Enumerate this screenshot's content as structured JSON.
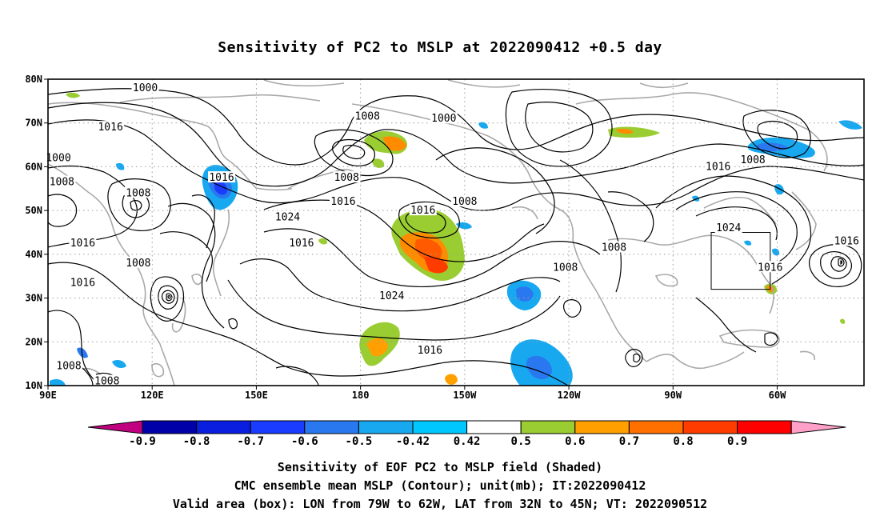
{
  "title": "Sensitivity of PC2 to MSLP at 2022090412 +0.5 day",
  "map": {
    "lat_labels": [
      "80N",
      "70N",
      "60N",
      "50N",
      "40N",
      "30N",
      "20N",
      "10N"
    ],
    "lon_labels": [
      "90E",
      "120E",
      "150E",
      "180",
      "150W",
      "120W",
      "90W",
      "60W"
    ],
    "lat_range": [
      10,
      80
    ],
    "lon_range_deg_east": [
      90,
      325
    ],
    "grid": "dotted",
    "valid_box": {
      "lon_west": -79,
      "lon_east": -62,
      "lat_south": 32,
      "lat_north": 45
    }
  },
  "contour_labels": [
    {
      "text": "1000",
      "lon": 118,
      "lat": 78
    },
    {
      "text": "1008",
      "lon": 182,
      "lat": 71.5
    },
    {
      "text": "1000",
      "lon": 204,
      "lat": 71
    },
    {
      "text": "1016",
      "lon": 108,
      "lat": 69
    },
    {
      "text": "1000",
      "lon": 93,
      "lat": 62
    },
    {
      "text": "1008",
      "lon": 94,
      "lat": 56.5
    },
    {
      "text": "1016",
      "lon": 140,
      "lat": 57.5
    },
    {
      "text": "1008",
      "lon": 116,
      "lat": 54
    },
    {
      "text": "1008",
      "lon": 176,
      "lat": 57.5
    },
    {
      "text": "1016",
      "lon": 175,
      "lat": 52
    },
    {
      "text": "1008",
      "lon": 210,
      "lat": 52
    },
    {
      "text": "1016",
      "lon": 283,
      "lat": 60
    },
    {
      "text": "1008",
      "lon": 293,
      "lat": 61.5
    },
    {
      "text": "1024",
      "lon": 159,
      "lat": 48.5
    },
    {
      "text": "1016",
      "lon": 198,
      "lat": 50
    },
    {
      "text": "1024",
      "lon": 286,
      "lat": 46
    },
    {
      "text": "1016",
      "lon": 100,
      "lat": 42.5
    },
    {
      "text": "1016",
      "lon": 163,
      "lat": 42.5
    },
    {
      "text": "1008",
      "lon": 253,
      "lat": 41.5
    },
    {
      "text": "1016",
      "lon": 320,
      "lat": 43
    },
    {
      "text": "1008",
      "lon": 116,
      "lat": 38
    },
    {
      "text": "1008",
      "lon": 239,
      "lat": 37
    },
    {
      "text": "1016",
      "lon": 298,
      "lat": 37
    },
    {
      "text": "1016",
      "lon": 100,
      "lat": 33.5
    },
    {
      "text": "1024",
      "lon": 189,
      "lat": 30.5
    },
    {
      "text": "1016",
      "lon": 200,
      "lat": 18
    },
    {
      "text": "1008",
      "lon": 96,
      "lat": 14.5
    },
    {
      "text": "1008",
      "lon": 107,
      "lat": 11
    }
  ],
  "colorbar": {
    "tick_labels": [
      "-0.9",
      "-0.8",
      "-0.7",
      "-0.6",
      "-0.5",
      "-0.42",
      "0.42",
      "0.5",
      "0.6",
      "0.7",
      "0.8",
      "0.9"
    ],
    "colors": [
      "#c0007f",
      "#0000a8",
      "#0a1ee0",
      "#1a3cff",
      "#2a78f0",
      "#18a8f0",
      "#00c8ff",
      "#ffffff",
      "#9acd32",
      "#ffa000",
      "#ff7000",
      "#ff3c00",
      "#ff0000",
      "#ffa0c8"
    ]
  },
  "captions": [
    "Sensitivity of EOF PC2 to MSLP field (Shaded)",
    "CMC ensemble mean MSLP (Contour); unit(mb); IT:2022090412",
    "Valid area (box): LON from 79W to 62W, LAT from 32N to 45N; VT: 2022090512"
  ]
}
